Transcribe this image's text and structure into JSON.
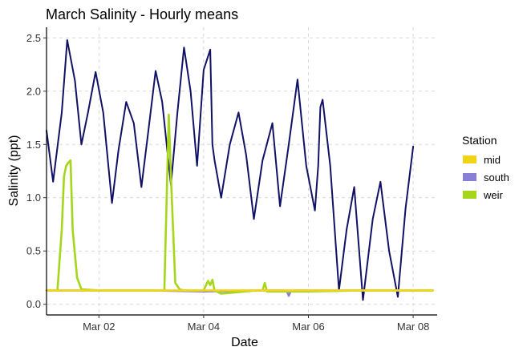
{
  "chart_data": {
    "type": "line",
    "title": "March Salinity - Hourly means",
    "xlabel": "Date",
    "ylabel": "Salinity (ppt)",
    "xlim": [
      "2021-03-01 00:00",
      "2021-03-08 11:00"
    ],
    "ylim": [
      -0.1,
      2.6
    ],
    "x_ticks": [
      {
        "label": "Mar 02",
        "value": "2021-03-02 00:00"
      },
      {
        "label": "Mar 04",
        "value": "2021-03-04 00:00"
      },
      {
        "label": "Mar 06",
        "value": "2021-03-06 00:00"
      },
      {
        "label": "Mar 08",
        "value": "2021-03-08 00:00"
      }
    ],
    "y_ticks": [
      0.0,
      0.5,
      1.0,
      1.5,
      2.0,
      2.5
    ],
    "y_tick_labels": [
      "0.0",
      "0.5",
      "1.0",
      "1.5",
      "2.0",
      "2.5"
    ],
    "grid": true,
    "legend": {
      "title": "Station",
      "position": "right",
      "entries": [
        {
          "name": "mid",
          "color": "#f2d416"
        },
        {
          "name": "south",
          "color": "#8a7fd6"
        },
        {
          "name": "weir",
          "color": "#a5d61a"
        }
      ]
    },
    "series": [
      {
        "color": "#111166",
        "x": [
          "2021-03-01 00:00",
          "2021-03-01 03:00",
          "2021-03-01 07:00",
          "2021-03-01 09:30",
          "2021-03-01 13:00",
          "2021-03-01 16:00",
          "2021-03-01 19:00",
          "2021-03-01 22:30",
          "2021-03-02 02:00",
          "2021-03-02 06:00",
          "2021-03-02 09:00",
          "2021-03-02 12:30",
          "2021-03-02 16:00",
          "2021-03-02 19:30",
          "2021-03-02 22:30",
          "2021-03-03 02:00",
          "2021-03-03 05:00",
          "2021-03-03 09:00",
          "2021-03-03 12:00",
          "2021-03-03 15:00",
          "2021-03-03 18:00",
          "2021-03-03 21:00",
          "2021-03-04 00:00",
          "2021-03-04 03:00",
          "2021-03-04 04:00",
          "2021-03-04 05:00",
          "2021-03-04 08:00",
          "2021-03-04 12:00",
          "2021-03-04 16:00",
          "2021-03-04 19:30",
          "2021-03-04 23:00",
          "2021-03-05 03:00",
          "2021-03-05 07:30",
          "2021-03-05 11:00",
          "2021-03-05 15:00",
          "2021-03-05 19:00",
          "2021-03-05 23:00",
          "2021-03-06 03:00",
          "2021-03-06 04:30",
          "2021-03-06 05:30",
          "2021-03-06 06:30",
          "2021-03-06 10:00",
          "2021-03-06 14:00",
          "2021-03-06 17:30",
          "2021-03-06 21:00",
          "2021-03-07 01:00",
          "2021-03-07 05:30",
          "2021-03-07 09:00",
          "2021-03-07 13:00",
          "2021-03-07 17:00",
          "2021-03-07 20:30",
          "2021-03-08 00:00"
        ],
        "values": [
          1.63,
          1.15,
          1.8,
          2.48,
          2.1,
          1.5,
          1.8,
          2.18,
          1.8,
          0.95,
          1.45,
          1.9,
          1.7,
          1.1,
          1.6,
          2.19,
          1.9,
          1.12,
          1.8,
          2.41,
          2.0,
          1.3,
          2.2,
          2.39,
          1.5,
          1.35,
          1.0,
          1.5,
          1.8,
          1.4,
          0.8,
          1.35,
          1.7,
          0.92,
          1.5,
          2.11,
          1.3,
          0.88,
          1.3,
          1.85,
          1.92,
          1.3,
          0.13,
          0.7,
          1.1,
          0.04,
          0.8,
          1.15,
          0.5,
          0.07,
          0.9,
          1.48
        ]
      },
      {
        "name": "south",
        "color": "#8a7fd6",
        "x": [
          "2021-03-01 00:00",
          "2021-03-01 04:00",
          "2021-03-02 00:00",
          "2021-03-03 00:00",
          "2021-03-04 00:00",
          "2021-03-05 00:00",
          "2021-03-05 14:00",
          "2021-03-05 15:00",
          "2021-03-05 16:00",
          "2021-03-06 00:00",
          "2021-03-07 00:00",
          "2021-03-08 00:00",
          "2021-03-08 09:00"
        ],
        "values": [
          0.13,
          0.13,
          0.13,
          0.13,
          0.12,
          0.13,
          0.13,
          0.08,
          0.13,
          0.13,
          0.13,
          0.13,
          0.13
        ]
      },
      {
        "name": "weir",
        "color": "#a5d61a",
        "x": [
          "2021-03-01 00:00",
          "2021-03-01 05:00",
          "2021-03-01 07:00",
          "2021-03-01 08:00",
          "2021-03-01 09:00",
          "2021-03-01 10:00",
          "2021-03-01 11:00",
          "2021-03-01 12:00",
          "2021-03-01 14:00",
          "2021-03-01 16:00",
          "2021-03-02 00:00",
          "2021-03-03 00:00",
          "2021-03-03 06:00",
          "2021-03-03 08:00",
          "2021-03-03 09:00",
          "2021-03-03 11:00",
          "2021-03-03 13:00",
          "2021-03-03 15:00",
          "2021-03-04 00:00",
          "2021-03-04 02:00",
          "2021-03-04 03:00",
          "2021-03-04 04:00",
          "2021-03-04 05:00",
          "2021-03-04 08:00",
          "2021-03-05 00:00",
          "2021-03-05 03:00",
          "2021-03-05 04:00",
          "2021-03-05 05:00",
          "2021-03-06 00:00",
          "2021-03-07 00:00",
          "2021-03-08 00:00",
          "2021-03-08 09:00"
        ],
        "values": [
          0.13,
          0.13,
          0.7,
          1.2,
          1.3,
          1.33,
          1.35,
          0.7,
          0.25,
          0.14,
          0.13,
          0.13,
          0.13,
          1.78,
          1.2,
          0.2,
          0.14,
          0.13,
          0.13,
          0.22,
          0.18,
          0.23,
          0.13,
          0.1,
          0.13,
          0.13,
          0.2,
          0.12,
          0.12,
          0.13,
          0.13,
          0.13
        ]
      },
      {
        "name": "mid",
        "color": "#f2d416",
        "x": [
          "2021-03-01 00:00",
          "2021-03-08 09:00"
        ],
        "values": [
          0.13,
          0.13
        ]
      }
    ]
  }
}
